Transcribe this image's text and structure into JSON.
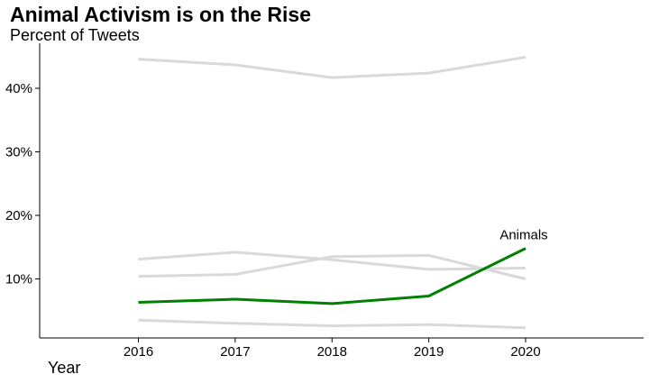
{
  "chart_data": {
    "type": "line",
    "title": "Animal Activism is on the Rise",
    "subtitle": "Percent of Tweets",
    "xlabel": "Year",
    "ylabel": "",
    "x": [
      2016,
      2017,
      2018,
      2019,
      2020
    ],
    "xlim": [
      2014.98,
      2021.22
    ],
    "ylim": [
      0.7,
      47.1
    ],
    "yticks": [
      10,
      20,
      30,
      40
    ],
    "ytick_labels": [
      "10%",
      "20%",
      "30%",
      "40%"
    ],
    "xtick_labels": [
      "2016",
      "2017",
      "2018",
      "2019",
      "2020"
    ],
    "grid": false,
    "legend": "none",
    "colors": {
      "highlight": "#008000",
      "context": "#d9d9d9"
    },
    "series": [
      {
        "values": [
          44.6,
          43.7,
          41.7,
          42.4,
          44.9
        ],
        "highlight": false
      },
      {
        "values": [
          13.1,
          14.2,
          13.0,
          11.5,
          11.7
        ],
        "highlight": false
      },
      {
        "values": [
          10.4,
          10.7,
          13.5,
          13.7,
          10.0
        ],
        "highlight": false
      },
      {
        "values": [
          3.5,
          3.0,
          2.6,
          2.8,
          2.3
        ],
        "highlight": false
      },
      {
        "name": "Animals",
        "values": [
          6.3,
          6.8,
          6.1,
          7.3,
          14.8
        ],
        "highlight": true
      }
    ],
    "annotations": [
      {
        "text": "Animals",
        "x": 2020,
        "y": 14.8
      }
    ]
  }
}
